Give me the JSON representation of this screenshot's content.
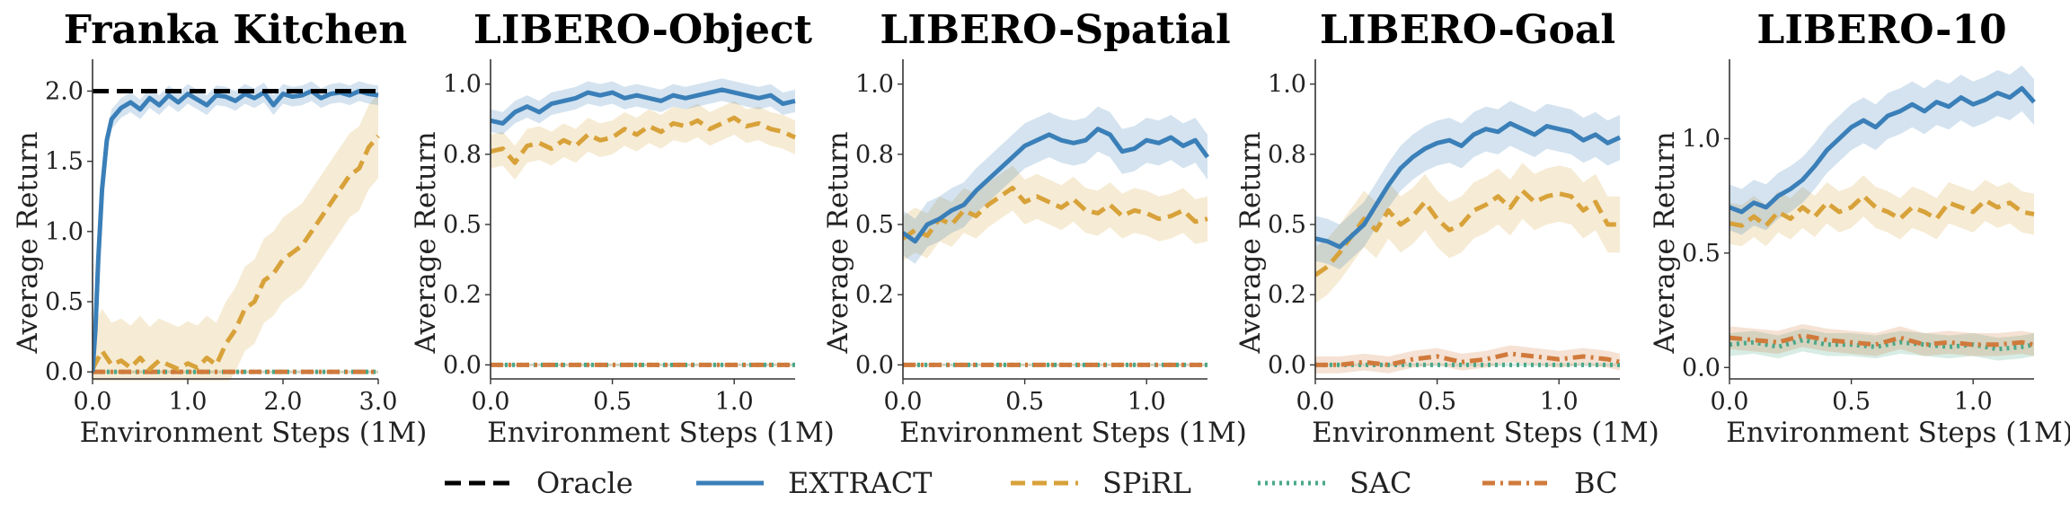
{
  "chart_data": [
    {
      "type": "line",
      "title": "Franka Kitchen",
      "xlabel": "Environment Steps (1M)",
      "ylabel": "Average Return",
      "xlim": [
        0,
        3.0
      ],
      "ylim": [
        -0.05,
        2.15
      ],
      "xticks": [
        0,
        1,
        2,
        3
      ],
      "xticklabels": [
        "0.0",
        "1.0",
        "2.0",
        "3.0"
      ],
      "yticks": [
        0,
        0.5,
        1.0,
        1.5,
        2.0
      ],
      "yticklabels": [
        "0.0",
        "0.5",
        "1.0",
        "1.5",
        "2.0"
      ],
      "series": [
        {
          "name": "Oracle",
          "x": [
            0,
            3.0
          ],
          "y": [
            2.0,
            2.0
          ],
          "band": 0
        },
        {
          "name": "EXTRACT",
          "x": [
            0,
            0.03,
            0.06,
            0.1,
            0.15,
            0.2,
            0.3,
            0.4,
            0.5,
            0.6,
            0.7,
            0.8,
            0.9,
            1.0,
            1.1,
            1.2,
            1.3,
            1.4,
            1.5,
            1.6,
            1.7,
            1.8,
            1.9,
            2.0,
            2.1,
            2.2,
            2.3,
            2.4,
            2.5,
            2.6,
            2.7,
            2.8,
            2.9,
            3.0
          ],
          "y": [
            0.0,
            0.3,
            0.8,
            1.3,
            1.65,
            1.8,
            1.88,
            1.92,
            1.87,
            1.95,
            1.9,
            1.97,
            1.92,
            1.98,
            1.94,
            1.9,
            1.97,
            1.96,
            1.93,
            1.98,
            1.95,
            1.99,
            1.9,
            1.98,
            1.96,
            1.97,
            2.0,
            1.95,
            1.98,
            1.99,
            1.97,
            2.0,
            1.98,
            1.97
          ],
          "band": 0.07
        },
        {
          "name": "SPiRL",
          "x": [
            0,
            0.1,
            0.2,
            0.3,
            0.4,
            0.5,
            0.6,
            0.7,
            0.8,
            0.9,
            1.0,
            1.1,
            1.2,
            1.3,
            1.4,
            1.5,
            1.6,
            1.7,
            1.8,
            1.9,
            2.0,
            2.1,
            2.2,
            2.3,
            2.4,
            2.5,
            2.6,
            2.7,
            2.8,
            2.9,
            3.0
          ],
          "y": [
            0.02,
            0.15,
            0.05,
            0.08,
            0.03,
            0.1,
            0.02,
            0.08,
            0.05,
            0.02,
            0.06,
            0.03,
            0.1,
            0.05,
            0.2,
            0.3,
            0.45,
            0.5,
            0.65,
            0.7,
            0.8,
            0.85,
            0.9,
            1.0,
            1.1,
            1.2,
            1.3,
            1.4,
            1.45,
            1.6,
            1.68
          ],
          "band": 0.3
        },
        {
          "name": "SAC",
          "x": [
            0,
            3.0
          ],
          "y": [
            0.0,
            0.0
          ],
          "band": 0.01
        },
        {
          "name": "BC",
          "x": [
            0,
            3.0
          ],
          "y": [
            0.0,
            0.0
          ],
          "band": 0.01
        }
      ]
    },
    {
      "type": "line",
      "title": "LIBERO-Object",
      "xlabel": "Environment Steps (1M)",
      "ylabel": "Average Return",
      "xlim": [
        0,
        1.25
      ],
      "ylim": [
        -0.05,
        1.05
      ],
      "xticks": [
        0,
        0.5,
        1.0
      ],
      "xticklabels": [
        "0.0",
        "0.5",
        "1.0"
      ],
      "yticks": [
        0,
        0.25,
        0.5,
        0.75,
        1.0
      ],
      "yticklabels": [
        "0.0",
        "0.2",
        "0.5",
        "0.8",
        "1.0"
      ],
      "series": [
        {
          "name": "EXTRACT",
          "x": [
            0,
            0.05,
            0.1,
            0.15,
            0.2,
            0.25,
            0.3,
            0.35,
            0.4,
            0.45,
            0.5,
            0.55,
            0.6,
            0.65,
            0.7,
            0.75,
            0.8,
            0.85,
            0.9,
            0.95,
            1.0,
            1.05,
            1.1,
            1.15,
            1.2,
            1.25
          ],
          "y": [
            0.87,
            0.86,
            0.9,
            0.92,
            0.9,
            0.93,
            0.94,
            0.95,
            0.97,
            0.96,
            0.97,
            0.95,
            0.96,
            0.95,
            0.94,
            0.96,
            0.95,
            0.96,
            0.97,
            0.98,
            0.97,
            0.96,
            0.95,
            0.96,
            0.93,
            0.94
          ],
          "band": 0.04
        },
        {
          "name": "SPiRL",
          "x": [
            0,
            0.05,
            0.1,
            0.15,
            0.2,
            0.25,
            0.3,
            0.35,
            0.4,
            0.45,
            0.5,
            0.55,
            0.6,
            0.65,
            0.7,
            0.75,
            0.8,
            0.85,
            0.9,
            0.95,
            1.0,
            1.05,
            1.1,
            1.15,
            1.2,
            1.25
          ],
          "y": [
            0.76,
            0.77,
            0.72,
            0.78,
            0.79,
            0.77,
            0.8,
            0.78,
            0.82,
            0.8,
            0.81,
            0.84,
            0.82,
            0.85,
            0.83,
            0.86,
            0.85,
            0.87,
            0.84,
            0.86,
            0.88,
            0.85,
            0.86,
            0.84,
            0.83,
            0.81
          ],
          "band": 0.06
        },
        {
          "name": "SAC",
          "x": [
            0,
            1.25
          ],
          "y": [
            0.0,
            0.0
          ],
          "band": 0.005
        },
        {
          "name": "BC",
          "x": [
            0,
            1.25
          ],
          "y": [
            0.0,
            0.0
          ],
          "band": 0.005
        }
      ]
    },
    {
      "type": "line",
      "title": "LIBERO-Spatial",
      "xlabel": "Environment Steps (1M)",
      "ylabel": "Average Return",
      "xlim": [
        0,
        1.25
      ],
      "ylim": [
        -0.05,
        1.05
      ],
      "xticks": [
        0,
        0.5,
        1.0
      ],
      "xticklabels": [
        "0.0",
        "0.5",
        "1.0"
      ],
      "yticks": [
        0,
        0.25,
        0.5,
        0.75,
        1.0
      ],
      "yticklabels": [
        "0.0",
        "0.2",
        "0.5",
        "0.8",
        "1.0"
      ],
      "series": [
        {
          "name": "EXTRACT",
          "x": [
            0,
            0.05,
            0.1,
            0.15,
            0.2,
            0.25,
            0.3,
            0.35,
            0.4,
            0.45,
            0.5,
            0.55,
            0.6,
            0.65,
            0.7,
            0.75,
            0.8,
            0.85,
            0.9,
            0.95,
            1.0,
            1.05,
            1.1,
            1.15,
            1.2,
            1.25
          ],
          "y": [
            0.47,
            0.44,
            0.5,
            0.52,
            0.55,
            0.57,
            0.62,
            0.66,
            0.7,
            0.74,
            0.78,
            0.8,
            0.82,
            0.8,
            0.79,
            0.8,
            0.84,
            0.82,
            0.76,
            0.77,
            0.8,
            0.79,
            0.81,
            0.78,
            0.8,
            0.74
          ],
          "band": 0.08
        },
        {
          "name": "SPiRL",
          "x": [
            0,
            0.05,
            0.1,
            0.15,
            0.2,
            0.25,
            0.3,
            0.35,
            0.4,
            0.45,
            0.5,
            0.55,
            0.6,
            0.65,
            0.7,
            0.75,
            0.8,
            0.85,
            0.9,
            0.95,
            1.0,
            1.05,
            1.1,
            1.15,
            1.2,
            1.25
          ],
          "y": [
            0.45,
            0.48,
            0.46,
            0.52,
            0.5,
            0.55,
            0.53,
            0.57,
            0.6,
            0.63,
            0.58,
            0.6,
            0.58,
            0.56,
            0.59,
            0.55,
            0.54,
            0.57,
            0.53,
            0.55,
            0.54,
            0.52,
            0.53,
            0.55,
            0.51,
            0.52
          ],
          "band": 0.08
        },
        {
          "name": "SAC",
          "x": [
            0,
            1.25
          ],
          "y": [
            0.0,
            0.0
          ],
          "band": 0.005
        },
        {
          "name": "BC",
          "x": [
            0,
            1.25
          ],
          "y": [
            0.0,
            0.0
          ],
          "band": 0.005
        }
      ]
    },
    {
      "type": "line",
      "title": "LIBERO-Goal",
      "xlabel": "Environment Steps (1M)",
      "ylabel": "Average Return",
      "xlim": [
        0,
        1.25
      ],
      "ylim": [
        -0.05,
        1.05
      ],
      "xticks": [
        0,
        0.5,
        1.0
      ],
      "xticklabels": [
        "0.0",
        "0.5",
        "1.0"
      ],
      "yticks": [
        0,
        0.25,
        0.5,
        0.75,
        1.0
      ],
      "yticklabels": [
        "0.0",
        "0.2",
        "0.5",
        "0.8",
        "1.0"
      ],
      "series": [
        {
          "name": "EXTRACT",
          "x": [
            0,
            0.05,
            0.1,
            0.15,
            0.2,
            0.25,
            0.3,
            0.35,
            0.4,
            0.45,
            0.5,
            0.55,
            0.6,
            0.65,
            0.7,
            0.75,
            0.8,
            0.85,
            0.9,
            0.95,
            1.0,
            1.05,
            1.1,
            1.15,
            1.2,
            1.25
          ],
          "y": [
            0.45,
            0.44,
            0.42,
            0.46,
            0.5,
            0.57,
            0.64,
            0.7,
            0.74,
            0.77,
            0.79,
            0.8,
            0.78,
            0.82,
            0.84,
            0.83,
            0.86,
            0.84,
            0.82,
            0.85,
            0.84,
            0.83,
            0.8,
            0.82,
            0.79,
            0.81
          ],
          "band": 0.08
        },
        {
          "name": "SPiRL",
          "x": [
            0,
            0.05,
            0.1,
            0.15,
            0.2,
            0.25,
            0.3,
            0.35,
            0.4,
            0.45,
            0.5,
            0.55,
            0.6,
            0.65,
            0.7,
            0.75,
            0.8,
            0.85,
            0.9,
            0.95,
            1.0,
            1.05,
            1.1,
            1.15,
            1.2,
            1.25
          ],
          "y": [
            0.32,
            0.35,
            0.4,
            0.46,
            0.52,
            0.48,
            0.55,
            0.5,
            0.53,
            0.58,
            0.52,
            0.48,
            0.5,
            0.55,
            0.57,
            0.6,
            0.56,
            0.62,
            0.58,
            0.6,
            0.61,
            0.6,
            0.55,
            0.58,
            0.5,
            0.5
          ],
          "band": 0.1
        },
        {
          "name": "SAC",
          "x": [
            0,
            1.25
          ],
          "y": [
            0.0,
            0.0
          ],
          "band": 0.005
        },
        {
          "name": "BC",
          "x": [
            0,
            0.1,
            0.2,
            0.3,
            0.4,
            0.5,
            0.6,
            0.7,
            0.8,
            0.9,
            1.0,
            1.1,
            1.2,
            1.25
          ],
          "y": [
            0.0,
            0.0,
            0.01,
            0.0,
            0.02,
            0.03,
            0.01,
            0.02,
            0.04,
            0.03,
            0.02,
            0.03,
            0.02,
            0.01
          ],
          "band": 0.03
        }
      ]
    },
    {
      "type": "line",
      "title": "LIBERO-10",
      "xlabel": "Environment Steps (1M)",
      "ylabel": "Average Return",
      "xlim": [
        0,
        1.25
      ],
      "ylim": [
        -0.05,
        1.3
      ],
      "xticks": [
        0,
        0.5,
        1.0
      ],
      "xticklabels": [
        "0.0",
        "0.5",
        "1.0"
      ],
      "yticks": [
        0,
        0.5,
        1.0
      ],
      "yticklabels": [
        "0.0",
        "0.5",
        "1.0"
      ],
      "series": [
        {
          "name": "EXTRACT",
          "x": [
            0,
            0.05,
            0.1,
            0.15,
            0.2,
            0.25,
            0.3,
            0.35,
            0.4,
            0.45,
            0.5,
            0.55,
            0.6,
            0.65,
            0.7,
            0.75,
            0.8,
            0.85,
            0.9,
            0.95,
            1.0,
            1.05,
            1.1,
            1.15,
            1.2,
            1.25
          ],
          "y": [
            0.7,
            0.68,
            0.72,
            0.7,
            0.75,
            0.78,
            0.82,
            0.88,
            0.95,
            1.0,
            1.05,
            1.08,
            1.05,
            1.1,
            1.12,
            1.15,
            1.12,
            1.16,
            1.14,
            1.18,
            1.15,
            1.17,
            1.2,
            1.18,
            1.22,
            1.16
          ],
          "band": 0.1
        },
        {
          "name": "SPiRL",
          "x": [
            0,
            0.05,
            0.1,
            0.15,
            0.2,
            0.25,
            0.3,
            0.35,
            0.4,
            0.45,
            0.5,
            0.55,
            0.6,
            0.65,
            0.7,
            0.75,
            0.8,
            0.85,
            0.9,
            0.95,
            1.0,
            1.05,
            1.1,
            1.15,
            1.2,
            1.25
          ],
          "y": [
            0.63,
            0.62,
            0.66,
            0.62,
            0.68,
            0.65,
            0.7,
            0.66,
            0.72,
            0.68,
            0.7,
            0.75,
            0.7,
            0.68,
            0.65,
            0.7,
            0.68,
            0.65,
            0.72,
            0.7,
            0.68,
            0.73,
            0.7,
            0.72,
            0.68,
            0.67
          ],
          "band": 0.09
        },
        {
          "name": "SAC",
          "x": [
            0,
            0.1,
            0.2,
            0.3,
            0.4,
            0.5,
            0.6,
            0.7,
            0.8,
            0.9,
            1.0,
            1.1,
            1.2,
            1.25
          ],
          "y": [
            0.1,
            0.11,
            0.09,
            0.12,
            0.1,
            0.1,
            0.09,
            0.11,
            0.1,
            0.09,
            0.1,
            0.08,
            0.09,
            0.1
          ],
          "band": 0.05
        },
        {
          "name": "BC",
          "x": [
            0,
            0.1,
            0.2,
            0.3,
            0.4,
            0.5,
            0.6,
            0.7,
            0.8,
            0.9,
            1.0,
            1.1,
            1.2,
            1.25
          ],
          "y": [
            0.13,
            0.12,
            0.11,
            0.14,
            0.12,
            0.11,
            0.1,
            0.13,
            0.1,
            0.11,
            0.1,
            0.1,
            0.11,
            0.1
          ],
          "band": 0.05
        }
      ]
    }
  ],
  "legend": {
    "entries": [
      {
        "label": "Oracle",
        "color": "#000000",
        "dash": "18,9",
        "width": 5
      },
      {
        "label": "EXTRACT",
        "color": "#3a7fb8",
        "dash": "",
        "width": 5
      },
      {
        "label": "SPiRL",
        "color": "#d8a23a",
        "dash": "16,8",
        "width": 5
      },
      {
        "label": "SAC",
        "color": "#4aa889",
        "dash": "3,5",
        "width": 5
      },
      {
        "label": "BC",
        "color": "#d07a3c",
        "dash": "14,6,3,6",
        "width": 5
      }
    ]
  },
  "colors": {
    "Oracle": "#000000",
    "EXTRACT": "#3a7fb8",
    "SPiRL": "#d8a23a",
    "SAC": "#4aa889",
    "BC": "#d07a3c"
  }
}
